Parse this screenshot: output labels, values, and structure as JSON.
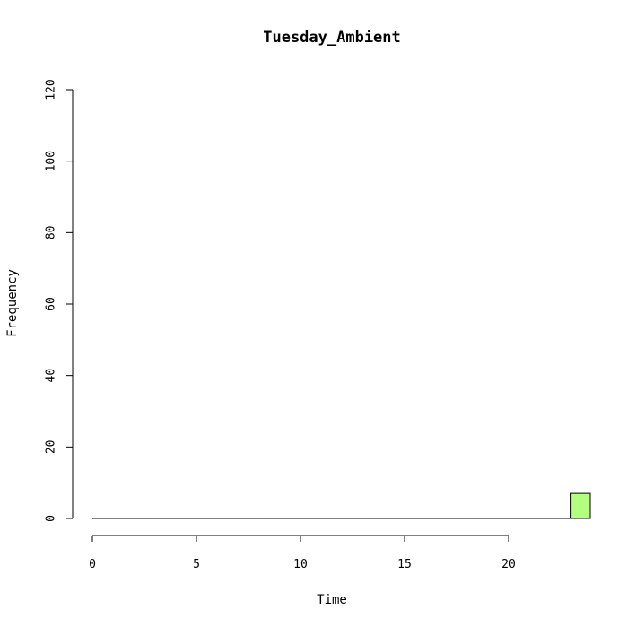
{
  "chart_data": {
    "type": "bar",
    "title": "Tuesday_Ambient",
    "xlabel": "Time",
    "ylabel": "Frequency",
    "xlim": [
      0,
      24
    ],
    "ylim": [
      0,
      120
    ],
    "x_ticks": [
      0,
      5,
      10,
      15,
      20
    ],
    "y_ticks": [
      0,
      20,
      40,
      60,
      80,
      100,
      120
    ],
    "bar_color": "#b3ff80",
    "bins": [
      {
        "start": 0,
        "end": 1,
        "value": 0
      },
      {
        "start": 1,
        "end": 2,
        "value": 0
      },
      {
        "start": 2,
        "end": 3,
        "value": 0
      },
      {
        "start": 3,
        "end": 4,
        "value": 0
      },
      {
        "start": 4,
        "end": 5,
        "value": 0
      },
      {
        "start": 5,
        "end": 6,
        "value": 0
      },
      {
        "start": 6,
        "end": 7,
        "value": 0
      },
      {
        "start": 7,
        "end": 8,
        "value": 0
      },
      {
        "start": 8,
        "end": 9,
        "value": 0
      },
      {
        "start": 9,
        "end": 10,
        "value": 0
      },
      {
        "start": 10,
        "end": 11,
        "value": 0
      },
      {
        "start": 11,
        "end": 12,
        "value": 0
      },
      {
        "start": 12,
        "end": 13,
        "value": 0
      },
      {
        "start": 13,
        "end": 14,
        "value": 0
      },
      {
        "start": 14,
        "end": 15,
        "value": 0
      },
      {
        "start": 15,
        "end": 16,
        "value": 0
      },
      {
        "start": 16,
        "end": 17,
        "value": 0
      },
      {
        "start": 17,
        "end": 18,
        "value": 0
      },
      {
        "start": 18,
        "end": 19,
        "value": 0
      },
      {
        "start": 19,
        "end": 20,
        "value": 0
      },
      {
        "start": 20,
        "end": 21,
        "value": 0
      },
      {
        "start": 21,
        "end": 22,
        "value": 0
      },
      {
        "start": 22,
        "end": 23,
        "value": 0
      },
      {
        "start": 23,
        "end": 24,
        "value": 7
      }
    ]
  }
}
